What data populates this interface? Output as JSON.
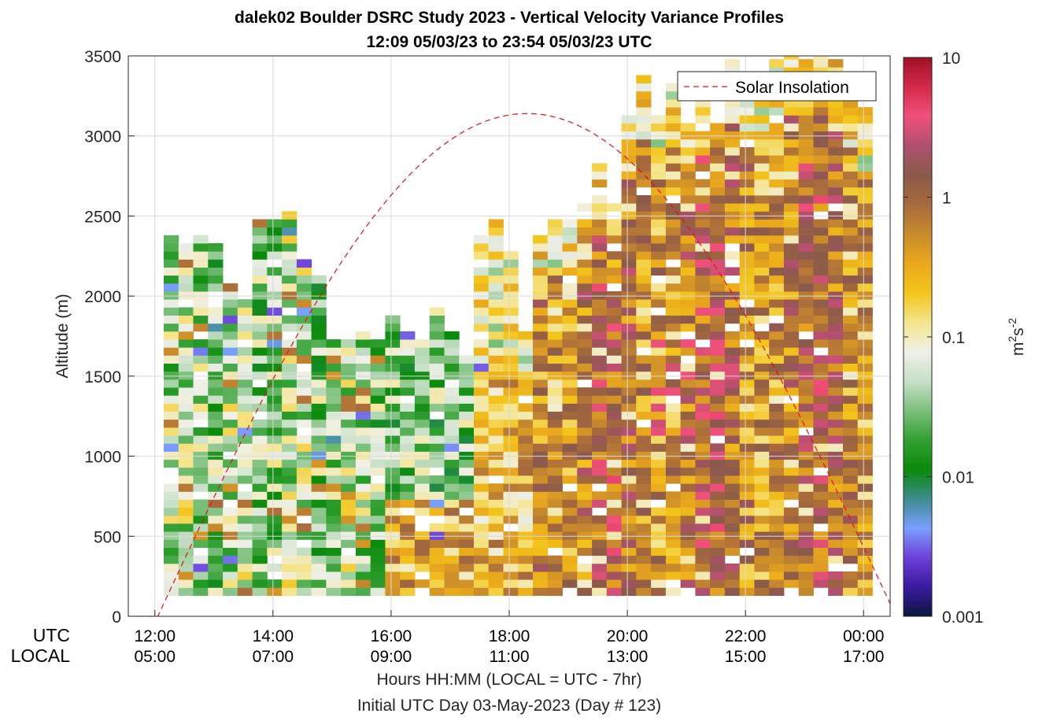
{
  "chart_data": {
    "type": "heatmap",
    "title_line1": "dalek02 Boulder DSRC Study 2023 - Vertical Velocity Variance Profiles",
    "title_line2": "12:09 05/03/23 to 23:54 05/03/23  UTC",
    "ylabel": "Altitude (m)",
    "xlabel_line1": "Hours HH:MM  (LOCAL = UTC - 7hr)",
    "xlabel_line2": "Initial UTC Day 03-May-2023 (Day # 123)",
    "utc_row_label": "UTC",
    "local_row_label": "LOCAL",
    "x_utc_ticks": [
      "12:00",
      "14:00",
      "16:00",
      "18:00",
      "20:00",
      "22:00",
      "00:00"
    ],
    "x_local_ticks": [
      "05:00",
      "07:00",
      "09:00",
      "11:00",
      "13:00",
      "15:00",
      "17:00"
    ],
    "x_tick_hours": [
      12,
      14,
      16,
      18,
      20,
      22,
      24
    ],
    "xlim_hours": [
      11.55,
      24.45
    ],
    "y_ticks": [
      0,
      500,
      1000,
      1500,
      2000,
      2500,
      3000,
      3500
    ],
    "ylim": [
      0,
      3500
    ],
    "grid": true,
    "colorbar": {
      "scale": "log",
      "range": [
        0.001,
        10
      ],
      "tick_values": [
        0.001,
        0.01,
        0.1,
        1,
        10
      ],
      "tick_labels": [
        "0.001",
        "0.01",
        "0.1",
        "1",
        "10"
      ],
      "label_base": "m",
      "label_sup1": "2",
      "label_mid": "s",
      "label_sup2": "-2",
      "colors": [
        "#0b1540",
        "#3a1aa0",
        "#6e40d8",
        "#7aa0ff",
        "#3c8c8c",
        "#0a8a0a",
        "#32a032",
        "#7cc07c",
        "#c8e0c8",
        "#f0f0e8",
        "#f5e58c",
        "#f3c51a",
        "#eaa81c",
        "#c88a2c",
        "#a86a3c",
        "#8a5a4a",
        "#b0506e",
        "#f0507a",
        "#d42a4a",
        "#a01024"
      ]
    },
    "legend": {
      "label": "Solar Insolation",
      "position": "top-right"
    },
    "solar_curve": {
      "rise_hour": 12.05,
      "set_hour": 24.55,
      "peak_altitude": 3140
    },
    "series": [
      {
        "name": "Vertical Velocity Variance",
        "value_unit": "log10(m2 s-2)",
        "time_start_hour": 12.15,
        "time_step_hour": 0.25,
        "alt_start_m": 130,
        "alt_step_m": 50,
        "data_region_hours": [
          12.15,
          23.9
        ],
        "column_tops_m": [
          2380,
          2320,
          2350,
          2300,
          2080,
          2050,
          2450,
          2450,
          2520,
          2220,
          2100,
          1700,
          1730,
          1760,
          1730,
          1850,
          1750,
          1730,
          1900,
          1750,
          1600,
          2350,
          2450,
          2250,
          1780,
          2350,
          2480,
          2480,
          2550,
          2800,
          2550,
          3100,
          3350,
          3120,
          3350,
          3050,
          3250,
          3050,
          3450,
          3350,
          3250,
          3450,
          3500,
          3450,
          3500,
          3450,
          3300,
          3150
        ]
      }
    ]
  }
}
